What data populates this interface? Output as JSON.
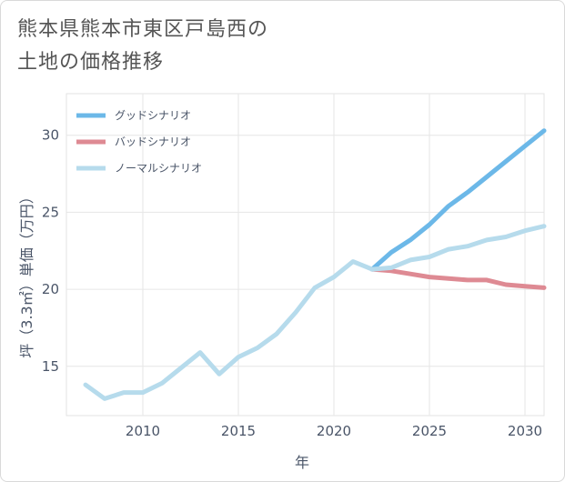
{
  "title_lines": [
    "熊本県熊本市東区戸島西の",
    "土地の価格推移"
  ],
  "chart_data": {
    "type": "line",
    "title": "熊本県熊本市東区戸島西の土地の価格推移",
    "xlabel": "年",
    "ylabel": "坪（3.3㎡）単価（万円）",
    "xlim": [
      2006,
      2031
    ],
    "ylim": [
      11.8,
      32.7
    ],
    "xticks": [
      2010,
      2015,
      2020,
      2025,
      2030
    ],
    "yticks": [
      15,
      20,
      25,
      30
    ],
    "grid": true,
    "legend_position": "top-left",
    "series": [
      {
        "name": "グッドシナリオ",
        "color": "#6cb8e8",
        "x": [
          2022,
          2023,
          2024,
          2025,
          2026,
          2027,
          2028,
          2029,
          2030,
          2031
        ],
        "values": [
          21.3,
          22.4,
          23.2,
          24.2,
          25.4,
          26.3,
          27.3,
          28.3,
          29.3,
          30.3
        ]
      },
      {
        "name": "バッドシナリオ",
        "color": "#de8a93",
        "x": [
          2022,
          2023,
          2024,
          2025,
          2026,
          2027,
          2028,
          2029,
          2030,
          2031
        ],
        "values": [
          21.3,
          21.2,
          21.0,
          20.8,
          20.7,
          20.6,
          20.6,
          20.3,
          20.2,
          20.1
        ]
      },
      {
        "name": "ノーマルシナリオ",
        "color": "#b6dbec",
        "x": [
          2007,
          2008,
          2009,
          2010,
          2011,
          2012,
          2013,
          2014,
          2015,
          2016,
          2017,
          2018,
          2019,
          2020,
          2021,
          2022,
          2023,
          2024,
          2025,
          2026,
          2027,
          2028,
          2029,
          2030,
          2031
        ],
        "values": [
          13.8,
          12.9,
          13.3,
          13.3,
          13.9,
          14.9,
          15.9,
          14.5,
          15.6,
          16.2,
          17.1,
          18.5,
          20.1,
          20.8,
          21.8,
          21.3,
          21.4,
          21.9,
          22.1,
          22.6,
          22.8,
          23.2,
          23.4,
          23.8,
          24.1
        ]
      }
    ]
  }
}
